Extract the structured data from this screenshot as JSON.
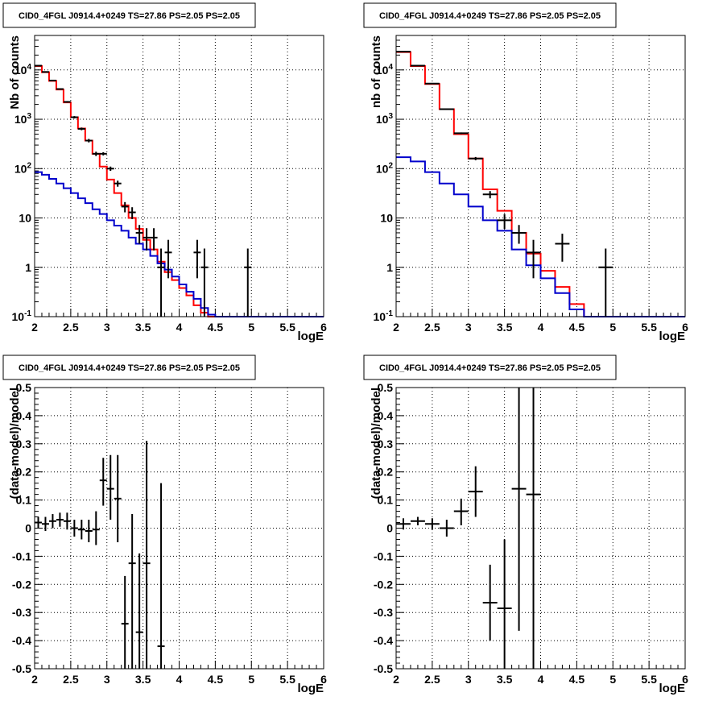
{
  "chart_data": [
    {
      "type": "line",
      "title": "CID0_4FGL J0914.4+0249 TS=27.86 PS=2.05 PS=2.05",
      "xlabel": "logE",
      "ylabel": "Nb of counts",
      "xlim": [
        2,
        6
      ],
      "ylim": [
        0.1,
        50000
      ],
      "ylog": true,
      "grid": true,
      "x_ticks": [
        "2",
        "2.5",
        "3",
        "3.5",
        "4",
        "4.5",
        "5",
        "5.5",
        "6"
      ],
      "y_ticks": [
        {
          "value": 0.1,
          "label": "10^-1"
        },
        {
          "value": 1,
          "label": "1"
        },
        {
          "value": 10,
          "label": "10"
        },
        {
          "value": 100,
          "label": "10^2"
        },
        {
          "value": 1000,
          "label": "10^3"
        },
        {
          "value": 10000,
          "label": "10^4"
        }
      ],
      "bin_edges": [
        2.0,
        2.1,
        2.2,
        2.3,
        2.4,
        2.5,
        2.6,
        2.7,
        2.8,
        2.9,
        3.0,
        3.1,
        3.2,
        3.3,
        3.4,
        3.5,
        3.6,
        3.7,
        3.8,
        3.9,
        4.0,
        4.1,
        4.2,
        4.3,
        4.4,
        4.5,
        4.6,
        4.7,
        4.8,
        4.9,
        5.0,
        5.1,
        5.2,
        5.3,
        5.4,
        5.5,
        5.6,
        5.7,
        5.8,
        5.9,
        6.0
      ],
      "series": [
        {
          "color": "#ff0000",
          "kind": "histogram",
          "values": [
            12000,
            9000,
            6000,
            4000,
            2200,
            1100,
            650,
            370,
            200,
            110,
            60,
            32,
            18,
            10,
            6,
            3.6,
            2.3,
            1.3,
            0.8,
            0.55,
            0.38,
            0.27,
            0.17,
            0.12,
            0.1,
            0.1,
            0.1,
            0.1,
            0.1,
            0.1,
            0.1,
            0.1,
            0.1,
            0.1,
            0.1,
            0.1,
            0.1,
            0.1,
            0.1,
            0.1
          ]
        },
        {
          "color": "#0000cc",
          "kind": "histogram",
          "values": [
            85,
            75,
            62,
            50,
            40,
            32,
            25,
            20,
            15,
            12,
            9,
            7,
            5.5,
            4,
            3,
            2.3,
            1.7,
            1.2,
            0.9,
            0.65,
            0.45,
            0.32,
            0.23,
            0.15,
            0.11,
            0.1,
            0.1,
            0.1,
            0.1,
            0.1,
            0.1,
            0.1,
            0.1,
            0.1,
            0.1,
            0.1,
            0.1,
            0.1,
            0.1,
            0.1
          ]
        },
        {
          "color": "#000000",
          "kind": "points",
          "points": [
            {
              "x": 2.05,
              "y": 12200,
              "lo": 12000,
              "hi": 12400
            },
            {
              "x": 2.15,
              "y": 9100,
              "lo": 8900,
              "hi": 9300
            },
            {
              "x": 2.25,
              "y": 6100,
              "lo": 5950,
              "hi": 6250
            },
            {
              "x": 2.35,
              "y": 4100,
              "lo": 3980,
              "hi": 4220
            },
            {
              "x": 2.45,
              "y": 2250,
              "lo": 2160,
              "hi": 2340
            },
            {
              "x": 2.55,
              "y": 1100,
              "lo": 1040,
              "hi": 1160
            },
            {
              "x": 2.65,
              "y": 640,
              "lo": 600,
              "hi": 680
            },
            {
              "x": 2.75,
              "y": 370,
              "lo": 340,
              "hi": 400
            },
            {
              "x": 2.85,
              "y": 200,
              "lo": 180,
              "hi": 220
            },
            {
              "x": 2.95,
              "y": 200,
              "lo": 185,
              "hi": 215
            },
            {
              "x": 3.05,
              "y": 100,
              "lo": 90,
              "hi": 110
            },
            {
              "x": 3.15,
              "y": 50,
              "lo": 43,
              "hi": 57
            },
            {
              "x": 3.25,
              "y": 17,
              "lo": 13,
              "hi": 21
            },
            {
              "x": 3.35,
              "y": 13,
              "lo": 9.5,
              "hi": 16.5
            },
            {
              "x": 3.45,
              "y": 5,
              "lo": 3,
              "hi": 7.2
            },
            {
              "x": 3.55,
              "y": 4,
              "lo": 2.2,
              "hi": 6.2
            },
            {
              "x": 3.65,
              "y": 4,
              "lo": 2.2,
              "hi": 6.2
            },
            {
              "x": 3.75,
              "y": 1,
              "lo": 0.1,
              "hi": 2.4
            },
            {
              "x": 3.85,
              "y": 2,
              "lo": 0.6,
              "hi": 3.6
            },
            {
              "x": 4.25,
              "y": 2,
              "lo": 0.6,
              "hi": 3.6
            },
            {
              "x": 4.35,
              "y": 1,
              "lo": 0.1,
              "hi": 2.4
            },
            {
              "x": 4.95,
              "y": 1,
              "lo": 0.1,
              "hi": 2.4
            }
          ]
        }
      ]
    },
    {
      "type": "line",
      "title": "CID0_4FGL J0914.4+0249 TS=27.86 PS=2.05 PS=2.05",
      "xlabel": "logE",
      "ylabel": "nb of counts",
      "xlim": [
        2,
        6
      ],
      "ylim": [
        0.1,
        50000
      ],
      "ylog": true,
      "grid": true,
      "x_ticks": [
        "2",
        "2.5",
        "3",
        "3.5",
        "4",
        "4.5",
        "5",
        "5.5",
        "6"
      ],
      "y_ticks": [
        {
          "value": 0.1,
          "label": "10^-1"
        },
        {
          "value": 1,
          "label": "1"
        },
        {
          "value": 10,
          "label": "10"
        },
        {
          "value": 100,
          "label": "10^2"
        },
        {
          "value": 1000,
          "label": "10^3"
        },
        {
          "value": 10000,
          "label": "10^4"
        }
      ],
      "bin_edges": [
        2.0,
        2.2,
        2.4,
        2.6,
        2.8,
        3.0,
        3.2,
        3.4,
        3.6,
        3.8,
        4.0,
        4.2,
        4.4,
        4.6,
        4.8,
        5.0,
        5.2,
        5.4,
        5.6,
        5.8,
        6.0
      ],
      "series": [
        {
          "color": "#ff0000",
          "kind": "histogram",
          "values": [
            23000,
            12000,
            5200,
            1600,
            500,
            160,
            38,
            14,
            5,
            1.9,
            0.85,
            0.4,
            0.18,
            0.1,
            0.1,
            0.1,
            0.1,
            0.1,
            0.1,
            0.1
          ]
        },
        {
          "color": "#0000cc",
          "kind": "histogram",
          "values": [
            170,
            140,
            85,
            50,
            30,
            17,
            9,
            5.5,
            2.3,
            1.1,
            0.6,
            0.3,
            0.14,
            0.1,
            0.1,
            0.1,
            0.1,
            0.1,
            0.1,
            0.1
          ]
        },
        {
          "color": "#000000",
          "kind": "points",
          "points": [
            {
              "x": 2.1,
              "y": 23500,
              "lo": 23300,
              "hi": 23700
            },
            {
              "x": 2.3,
              "y": 12200,
              "lo": 12050,
              "hi": 12350
            },
            {
              "x": 2.5,
              "y": 5300,
              "lo": 5200,
              "hi": 5400
            },
            {
              "x": 2.7,
              "y": 1600,
              "lo": 1560,
              "hi": 1640
            },
            {
              "x": 2.9,
              "y": 520,
              "lo": 500,
              "hi": 540
            },
            {
              "x": 3.1,
              "y": 160,
              "lo": 148,
              "hi": 172
            },
            {
              "x": 3.3,
              "y": 30,
              "lo": 25,
              "hi": 35
            },
            {
              "x": 3.5,
              "y": 9,
              "lo": 6,
              "hi": 12
            },
            {
              "x": 3.7,
              "y": 5,
              "lo": 3,
              "hi": 7.2
            },
            {
              "x": 3.9,
              "y": 2,
              "lo": 0.6,
              "hi": 3.6
            },
            {
              "x": 4.3,
              "y": 3,
              "lo": 1.3,
              "hi": 4.8
            },
            {
              "x": 4.9,
              "y": 1,
              "lo": 0.1,
              "hi": 2.4
            }
          ]
        }
      ]
    },
    {
      "type": "scatter",
      "title": "CID0_4FGL J0914.4+0249 TS=27.86 PS=2.05 PS=2.05",
      "xlabel": "logE",
      "ylabel": "(data-model)/model",
      "xlim": [
        2,
        6
      ],
      "ylim": [
        -0.5,
        0.5
      ],
      "ylog": false,
      "grid": true,
      "x_ticks": [
        "2",
        "2.5",
        "3",
        "3.5",
        "4",
        "4.5",
        "5",
        "5.5",
        "6"
      ],
      "y_ticks": [
        {
          "value": -0.5,
          "label": "-0.5"
        },
        {
          "value": -0.4,
          "label": "-0.4"
        },
        {
          "value": -0.3,
          "label": "-0.3"
        },
        {
          "value": -0.2,
          "label": "-0.2"
        },
        {
          "value": -0.1,
          "label": "-0.1"
        },
        {
          "value": 0,
          "label": "0"
        },
        {
          "value": 0.1,
          "label": "0.1"
        },
        {
          "value": 0.2,
          "label": "0.2"
        },
        {
          "value": 0.3,
          "label": "0.3"
        },
        {
          "value": 0.4,
          "label": "0.4"
        },
        {
          "value": 0.5,
          "label": "0.5"
        }
      ],
      "half_width": 0.05,
      "series": [
        {
          "color": "#000000",
          "kind": "points",
          "points": [
            {
              "x": 2.05,
              "y": 0.02,
              "lo": 0.0,
              "hi": 0.04
            },
            {
              "x": 2.15,
              "y": 0.015,
              "lo": -0.01,
              "hi": 0.04
            },
            {
              "x": 2.25,
              "y": 0.025,
              "lo": 0.0,
              "hi": 0.05
            },
            {
              "x": 2.35,
              "y": 0.03,
              "lo": 0.005,
              "hi": 0.055
            },
            {
              "x": 2.45,
              "y": 0.025,
              "lo": -0.005,
              "hi": 0.055
            },
            {
              "x": 2.55,
              "y": 0.0,
              "lo": -0.03,
              "hi": 0.03
            },
            {
              "x": 2.65,
              "y": -0.005,
              "lo": -0.04,
              "hi": 0.03
            },
            {
              "x": 2.75,
              "y": -0.01,
              "lo": -0.05,
              "hi": 0.03
            },
            {
              "x": 2.85,
              "y": -0.005,
              "lo": -0.06,
              "hi": 0.06
            },
            {
              "x": 2.95,
              "y": 0.17,
              "lo": 0.08,
              "hi": 0.25
            },
            {
              "x": 3.05,
              "y": 0.14,
              "lo": 0.03,
              "hi": 0.26
            },
            {
              "x": 3.15,
              "y": 0.105,
              "lo": -0.05,
              "hi": 0.26
            },
            {
              "x": 3.25,
              "y": -0.34,
              "lo": -0.5,
              "hi": -0.17
            },
            {
              "x": 3.35,
              "y": -0.125,
              "lo": -0.5,
              "hi": 0.05
            },
            {
              "x": 3.45,
              "y": -0.37,
              "lo": -0.5,
              "hi": -0.09
            },
            {
              "x": 3.55,
              "y": -0.125,
              "lo": -0.5,
              "hi": 0.31
            },
            {
              "x": 3.75,
              "y": -0.42,
              "lo": -0.5,
              "hi": 0.16
            }
          ]
        }
      ]
    },
    {
      "type": "scatter",
      "title": "CID0_4FGL J0914.4+0249 TS=27.86 PS=2.05 PS=2.05",
      "xlabel": "logE",
      "ylabel": "(data-model)/model",
      "xlim": [
        2,
        6
      ],
      "ylim": [
        -0.5,
        0.5
      ],
      "ylog": false,
      "grid": true,
      "x_ticks": [
        "2",
        "2.5",
        "3",
        "3.5",
        "4",
        "4.5",
        "5",
        "5.5",
        "6"
      ],
      "y_ticks": [
        {
          "value": -0.5,
          "label": "-0.5"
        },
        {
          "value": -0.4,
          "label": "-0.4"
        },
        {
          "value": -0.3,
          "label": "-0.3"
        },
        {
          "value": -0.2,
          "label": "-0.2"
        },
        {
          "value": -0.1,
          "label": "-0.1"
        },
        {
          "value": 0,
          "label": "0"
        },
        {
          "value": 0.1,
          "label": "0.1"
        },
        {
          "value": 0.2,
          "label": "0.2"
        },
        {
          "value": 0.3,
          "label": "0.3"
        },
        {
          "value": 0.4,
          "label": "0.4"
        },
        {
          "value": 0.5,
          "label": "0.5"
        }
      ],
      "half_width": 0.1,
      "series": [
        {
          "color": "#000000",
          "kind": "points",
          "points": [
            {
              "x": 2.1,
              "y": 0.015,
              "lo": -0.005,
              "hi": 0.035
            },
            {
              "x": 2.3,
              "y": 0.025,
              "lo": 0.01,
              "hi": 0.04
            },
            {
              "x": 2.5,
              "y": 0.015,
              "lo": -0.005,
              "hi": 0.035
            },
            {
              "x": 2.7,
              "y": 0.0,
              "lo": -0.03,
              "hi": 0.03
            },
            {
              "x": 2.9,
              "y": 0.06,
              "lo": 0.01,
              "hi": 0.105
            },
            {
              "x": 3.1,
              "y": 0.13,
              "lo": 0.04,
              "hi": 0.22
            },
            {
              "x": 3.3,
              "y": -0.265,
              "lo": -0.4,
              "hi": -0.13
            },
            {
              "x": 3.5,
              "y": -0.285,
              "lo": -0.5,
              "hi": -0.04
            },
            {
              "x": 3.7,
              "y": 0.14,
              "lo": -0.365,
              "hi": 0.5
            },
            {
              "x": 3.9,
              "y": 0.12,
              "lo": -0.5,
              "hi": 0.5
            }
          ]
        }
      ]
    }
  ]
}
